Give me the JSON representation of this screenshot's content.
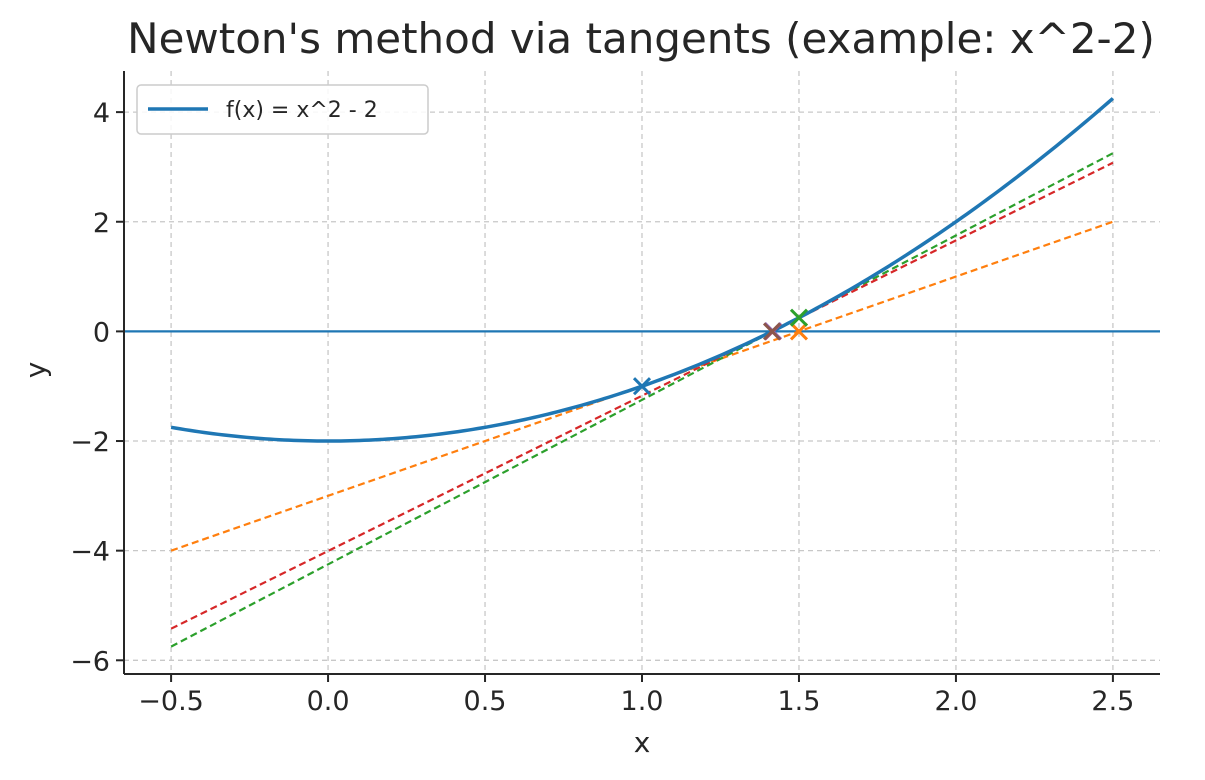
{
  "chart_data": {
    "type": "line",
    "title": "Newton's method via tangents (example: x^2-2)",
    "xlabel": "x",
    "ylabel": "y",
    "xlim": [
      -0.65,
      2.65
    ],
    "ylim": [
      -6.25,
      4.75
    ],
    "x_ticks": [
      -0.5,
      0.0,
      0.5,
      1.0,
      1.5,
      2.0,
      2.5
    ],
    "x_tick_labels": [
      "−0.5",
      "0.0",
      "0.5",
      "1.0",
      "1.5",
      "2.0",
      "2.5"
    ],
    "y_ticks": [
      -6,
      -4,
      -2,
      0,
      2,
      4
    ],
    "y_tick_labels": [
      "−6",
      "−4",
      "−2",
      "0",
      "2",
      "4"
    ],
    "grid": true,
    "legend_position": "top-left",
    "function": {
      "name": "f(x) = x^2 - 2",
      "expression": "x^2 - 2",
      "x_range": [
        -0.5,
        2.5
      ],
      "color": "#1f77b4"
    },
    "zero_line": {
      "y": 0,
      "color": "#1f77b4"
    },
    "tangent_lines": [
      {
        "color": "#ff7f0e",
        "x0": 1.0,
        "slope": 2.0,
        "intercept": -3.0,
        "x_range": [
          -0.5,
          2.5
        ]
      },
      {
        "color": "#2ca02c",
        "x0": 1.5,
        "slope": 3.0,
        "intercept": -4.25,
        "x_range": [
          -0.5,
          2.5
        ]
      },
      {
        "color": "#d62728",
        "x0": 1.4167,
        "slope": 2.8333,
        "intercept": -4.0069,
        "x_range": [
          -0.5,
          2.5
        ]
      }
    ],
    "iterate_markers": [
      {
        "x": 1.0,
        "y": -1.0,
        "color": "#1f77b4"
      },
      {
        "x": 1.5,
        "y": 0.0,
        "color": "#ff7f0e"
      },
      {
        "x": 1.5,
        "y": 0.25,
        "color": "#2ca02c"
      },
      {
        "x": 1.4167,
        "y": 0.0,
        "color": "#d62728"
      },
      {
        "x": 1.4167,
        "y": 0.0069,
        "color": "#9467bd"
      },
      {
        "x": 1.4142,
        "y": 0.0,
        "color": "#8c564b"
      }
    ]
  }
}
